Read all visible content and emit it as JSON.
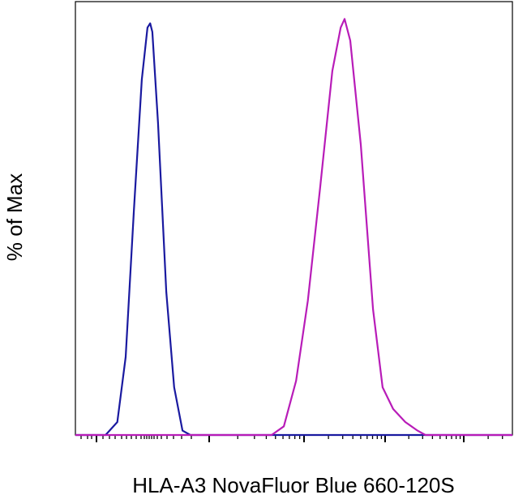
{
  "chart_data": {
    "type": "line",
    "ylabel": "% of Max",
    "xlabel": "HLA-A3 NovaFluor Blue 660-120S",
    "xlim": [
      0,
      1000
    ],
    "ylim": [
      0,
      100
    ],
    "series": [
      {
        "color": "#1a1aa0",
        "x": [
          0,
          69,
          96,
          115,
          134,
          152,
          165,
          171,
          176,
          189,
          208,
          226,
          245,
          263,
          1000
        ],
        "values": [
          0,
          0,
          3,
          18,
          52,
          82,
          94,
          95,
          93,
          72,
          33,
          11,
          1,
          0,
          0
        ]
      },
      {
        "color": "#b81cb8",
        "x": [
          0,
          449,
          477,
          505,
          532,
          560,
          588,
          607,
          616,
          629,
          653,
          681,
          703,
          727,
          755,
          783,
          801,
          1000
        ],
        "values": [
          0,
          0,
          2,
          12.5,
          31,
          57,
          84,
          94,
          96,
          91,
          67,
          29,
          11,
          6,
          3,
          1,
          0,
          0
        ]
      }
    ]
  }
}
